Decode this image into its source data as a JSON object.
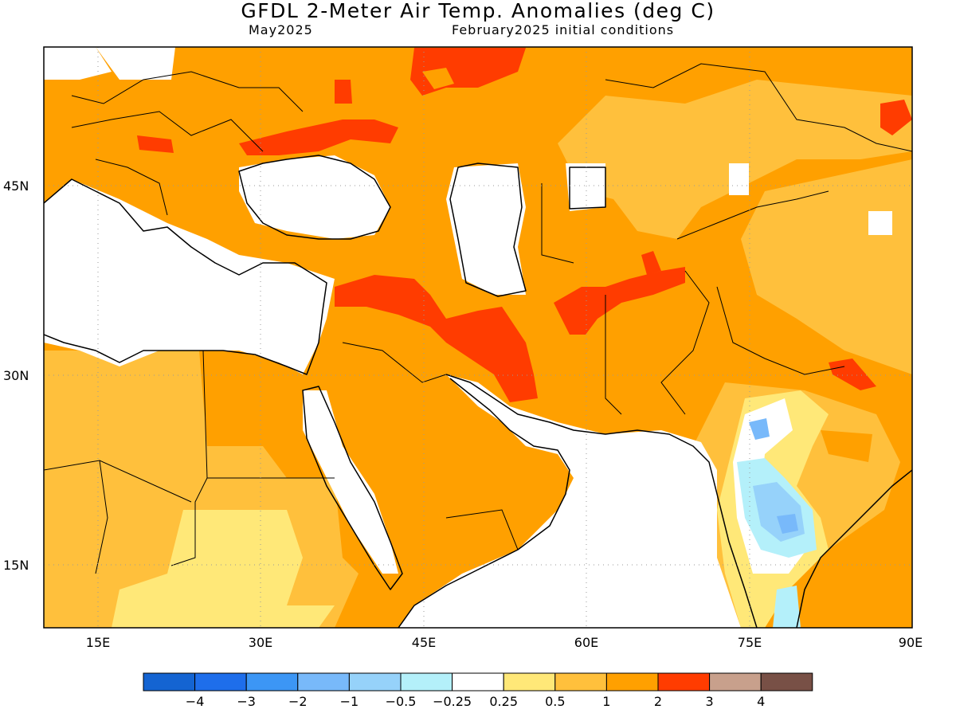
{
  "header": {
    "title": "GFDL 2-Meter Air Temp. Anomalies (deg C)",
    "valid_month": "May2025",
    "init_conditions": "February2025 initial conditions"
  },
  "map": {
    "lon_range": [
      10,
      90
    ],
    "lat_range": [
      10,
      56
    ],
    "lon_ticks": [
      {
        "value": 15,
        "label": "15E"
      },
      {
        "value": 30,
        "label": "30E"
      },
      {
        "value": 45,
        "label": "45E"
      },
      {
        "value": 60,
        "label": "60E"
      },
      {
        "value": 75,
        "label": "75E"
      },
      {
        "value": 90,
        "label": "90E"
      }
    ],
    "lat_ticks": [
      {
        "value": 45,
        "label": "45N"
      },
      {
        "value": 30,
        "label": "30N"
      },
      {
        "value": 15,
        "label": "15N"
      }
    ],
    "gridlines": "dotted",
    "legend_placement": "bottom"
  },
  "legend": {
    "bins": [
      {
        "color": "#1464d2"
      },
      {
        "color": "#1e6eeb"
      },
      {
        "color": "#3c96f5"
      },
      {
        "color": "#78b9fa"
      },
      {
        "color": "#96d2fa"
      },
      {
        "color": "#b4f0fa"
      },
      {
        "color": "#ffffff"
      },
      {
        "color": "#ffe878"
      },
      {
        "color": "#ffc03c"
      },
      {
        "color": "#ffa000"
      },
      {
        "color": "#ff3c00"
      },
      {
        "color": "#c8a08c"
      },
      {
        "color": "#785046"
      }
    ],
    "labels": [
      "−4",
      "−3",
      "−2",
      "−1",
      "−0.5",
      "−0.25",
      "0.25",
      "0.5",
      "1",
      "2",
      "3",
      "4"
    ]
  },
  "regions": [
    {
      "name": "Balkans / Central Europe",
      "anomaly_class": "1 to 2"
    },
    {
      "name": "Southern Russia band",
      "anomaly_class": "2 to 3"
    },
    {
      "name": "Black Sea",
      "anomaly_class": "-0.25 to 0.25"
    },
    {
      "name": "Turkey / Anatolia",
      "anomaly_class": "1 to 2"
    },
    {
      "name": "Mediterranean Sea",
      "anomaly_class": "-0.25 to 0.25"
    },
    {
      "name": "Iraq / Western Iran",
      "anomaly_class": "2 to 3"
    },
    {
      "name": "Arabian Peninsula",
      "anomaly_class": "1 to 2"
    },
    {
      "name": "Northeast Africa",
      "anomaly_class": "0.5 to 2"
    },
    {
      "name": "Kazakhstan / Central Asia",
      "anomaly_class": "1 to 2"
    },
    {
      "name": "Western China",
      "anomaly_class": "0.5 to 1"
    },
    {
      "name": "Central India",
      "anomaly_class": "-1 to 0.25"
    },
    {
      "name": "Arabian Sea",
      "anomaly_class": "-0.25 to 0.25"
    }
  ]
}
